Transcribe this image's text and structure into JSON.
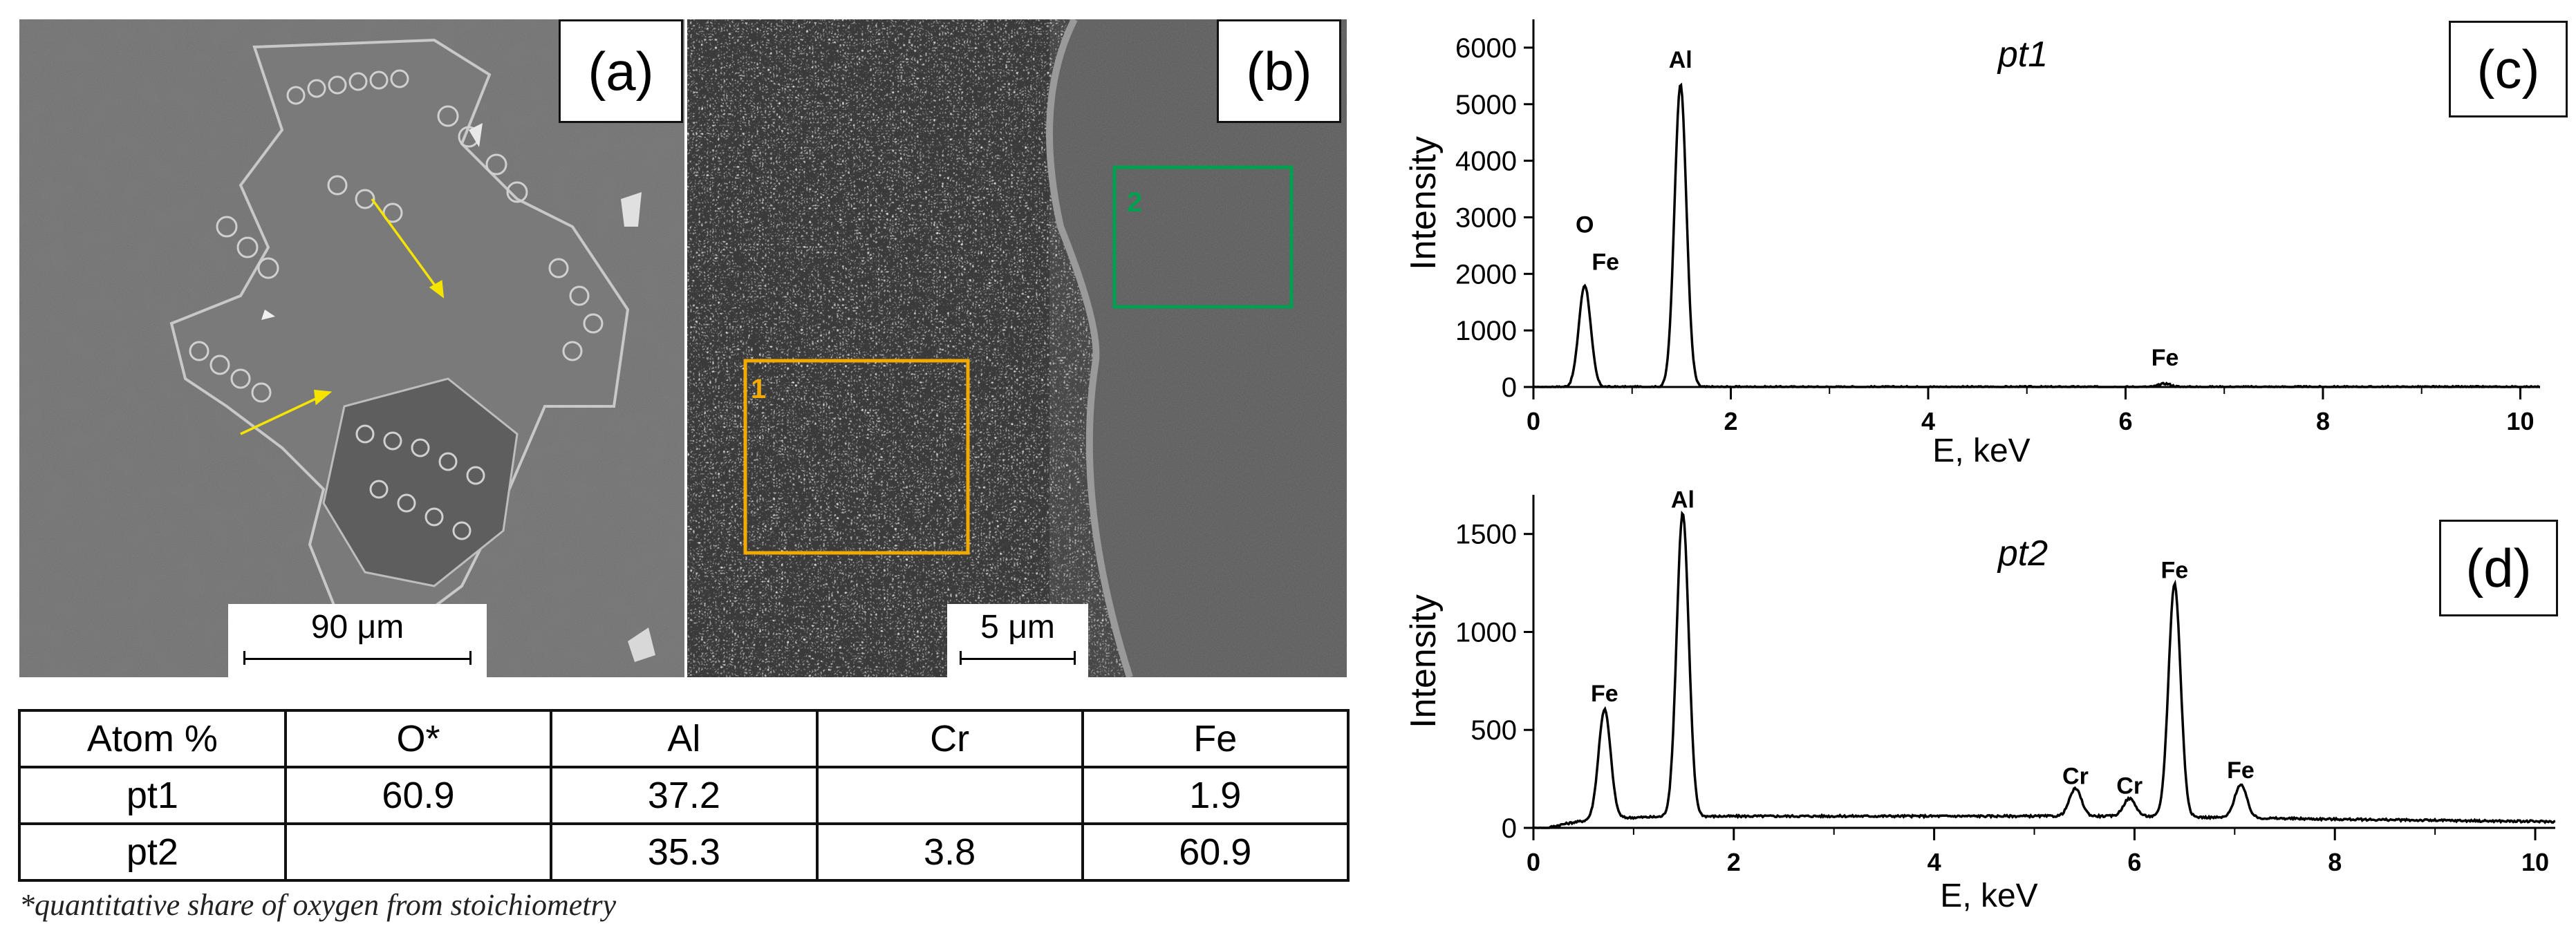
{
  "panels": {
    "a": {
      "label": "(a)",
      "scale_bar": "90 μm"
    },
    "b": {
      "label": "(b)",
      "scale_bar": "5 μm",
      "regions": [
        {
          "id": "1",
          "color": "#f2a900"
        },
        {
          "id": "2",
          "color": "#00a050"
        }
      ]
    },
    "c": {
      "label": "(c)"
    },
    "d": {
      "label": "(d)"
    }
  },
  "table": {
    "headers": [
      "Atom %",
      "O*",
      "Al",
      "Cr",
      "Fe"
    ],
    "rows": [
      [
        "pt1",
        "60.9",
        "37.2",
        "",
        "1.9"
      ],
      [
        "pt2",
        "",
        "35.3",
        "3.8",
        "60.9"
      ]
    ],
    "footnote": "*quantitative share of oxygen from stoichiometry"
  },
  "chart_data": [
    {
      "type": "line",
      "title": "pt1",
      "xlabel": "E, keV",
      "ylabel": "Intensity",
      "xlim": [
        0,
        10.2
      ],
      "ylim": [
        0,
        6500
      ],
      "xticks": [
        "0",
        "2",
        "4",
        "6",
        "8",
        "10"
      ],
      "yticks": [
        "0",
        "1000",
        "2000",
        "3000",
        "4000",
        "5000",
        "6000"
      ],
      "peaks": [
        {
          "label": "O Fe",
          "x": 0.52,
          "y": 1800
        },
        {
          "label": "Al",
          "x": 1.49,
          "y": 5350
        },
        {
          "label": "Fe",
          "x": 6.4,
          "y": 60
        }
      ],
      "peak_labels": [
        "O",
        "Fe",
        "Al",
        "Fe"
      ]
    },
    {
      "type": "line",
      "title": "pt2",
      "xlabel": "E, keV",
      "ylabel": "Intensity",
      "xlim": [
        0,
        10.2
      ],
      "ylim": [
        0,
        1700
      ],
      "xticks": [
        "0",
        "2",
        "4",
        "6",
        "8",
        "10"
      ],
      "yticks": [
        "0",
        "500",
        "1000",
        "1500"
      ],
      "peaks": [
        {
          "label": "Fe",
          "x": 0.71,
          "y": 560
        },
        {
          "label": "Al",
          "x": 1.49,
          "y": 1550
        },
        {
          "label": "Cr",
          "x": 5.41,
          "y": 140
        },
        {
          "label": "Cr",
          "x": 5.95,
          "y": 90
        },
        {
          "label": "Fe",
          "x": 6.4,
          "y": 1190
        },
        {
          "label": "Fe",
          "x": 7.06,
          "y": 170
        }
      ],
      "peak_labels": [
        "Fe",
        "Al",
        "Cr",
        "Cr",
        "Fe",
        "Fe"
      ]
    }
  ]
}
